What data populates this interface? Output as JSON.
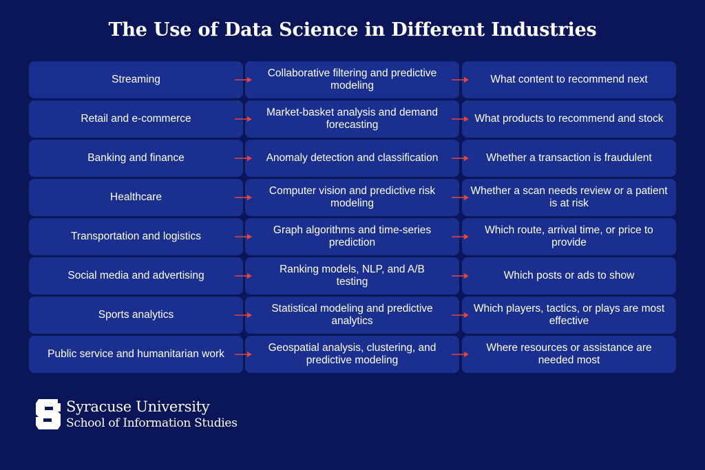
{
  "title": "The Use of Data Science in Different Industries",
  "colors": {
    "background": "#0a1657",
    "cell": "#1b2f8f",
    "arrow": "#e8463a"
  },
  "rows": [
    {
      "industry": "Streaming",
      "method": "Collaborative filtering and predictive modeling",
      "decision": "What content to recommend next"
    },
    {
      "industry": "Retail and e-commerce",
      "method": "Market-basket analysis and demand forecasting",
      "decision": "What products to recommend and stock"
    },
    {
      "industry": "Banking and finance",
      "method": "Anomaly detection and classification",
      "decision": "Whether a transaction is fraudulent"
    },
    {
      "industry": "Healthcare",
      "method": "Computer vision and predictive risk modeling",
      "decision": "Whether a scan needs review or a patient is at risk"
    },
    {
      "industry": "Transportation and logistics",
      "method": "Graph algorithms and time-series prediction",
      "decision": "Which route, arrival time, or price to provide"
    },
    {
      "industry": "Social media and advertising",
      "method": "Ranking models, NLP, and A/B testing",
      "decision": "Which posts or ads to show"
    },
    {
      "industry": "Sports analytics",
      "method": "Statistical modeling and predictive analytics",
      "decision": "Which players, tactics, or plays are most effective"
    },
    {
      "industry": "Public service and humanitarian work",
      "method": "Geospatial analysis, clustering, and predictive modeling",
      "decision": "Where resources or assistance are needed most"
    }
  ],
  "footer": {
    "logo_icon": "block-s-icon",
    "university": "Syracuse University",
    "school": "School of Information Studies"
  }
}
